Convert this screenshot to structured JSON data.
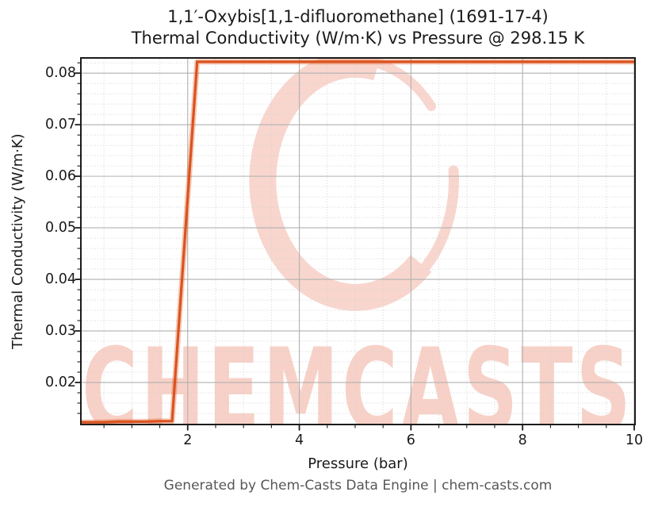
{
  "figure": {
    "title_line1": "1,1′-Oxybis[1,1-difluoromethane] (1691-17-4)",
    "title_line2": "Thermal Conductivity (W/m·K) vs Pressure @ 298.15 K",
    "footer": "Generated by Chem-Casts Data Engine | chem-casts.com",
    "watermark_text": "CHEMCASTS"
  },
  "chart_data": {
    "type": "line",
    "title": "1,1′-Oxybis[1,1-difluoromethane] (1691-17-4)",
    "subtitle": "Thermal Conductivity (W/m·K) vs Pressure @ 298.15 K",
    "xlabel": "Pressure (bar)",
    "ylabel": "Thermal Conductivity (W/m·K)",
    "xlim": [
      0.1,
      10
    ],
    "ylim": [
      0.012,
      0.0828
    ],
    "grid": true,
    "legend_position": "none",
    "x_major_ticks": {
      "values": [
        2,
        4,
        6,
        8,
        10
      ],
      "labels": [
        "2",
        "4",
        "6",
        "8",
        "10"
      ]
    },
    "y_major_ticks": {
      "values": [
        0.02,
        0.03,
        0.04,
        0.05,
        0.06,
        0.07,
        0.08
      ],
      "labels": [
        "0.02",
        "0.03",
        "0.04",
        "0.05",
        "0.06",
        "0.07",
        "0.08"
      ]
    },
    "x_minor_step": 0.5,
    "y_minor_step": 0.002,
    "series": [
      {
        "name": "Thermal Conductivity (W/m·K)",
        "color": "#db5320",
        "x": [
          0.1,
          0.25,
          0.5,
          0.75,
          1.0,
          1.25,
          1.5,
          1.72,
          2.17,
          2.5,
          3.0,
          3.5,
          4.0,
          4.5,
          5.0,
          5.5,
          6.0,
          6.5,
          7.0,
          7.5,
          8.0,
          8.5,
          9.0,
          9.5,
          10.0
        ],
        "y": [
          0.0123,
          0.0123,
          0.0123,
          0.0124,
          0.0124,
          0.0124,
          0.0125,
          0.0125,
          0.0822,
          0.0822,
          0.0822,
          0.0822,
          0.0822,
          0.0822,
          0.0822,
          0.0822,
          0.0822,
          0.0822,
          0.0822,
          0.0822,
          0.0822,
          0.0822,
          0.0822,
          0.0822,
          0.0822
        ]
      }
    ]
  },
  "colors": {
    "line": "#db5320",
    "line_halo": "#e2672e",
    "watermark_ring": "#f8d6ce",
    "watermark_text": "#f6c9be",
    "major_grid": "#b0b0b0",
    "minor_grid": "#d2d2d2",
    "spine": "#1c1c1c",
    "footer_text": "#575757",
    "title_text": "#1a1a1a"
  }
}
